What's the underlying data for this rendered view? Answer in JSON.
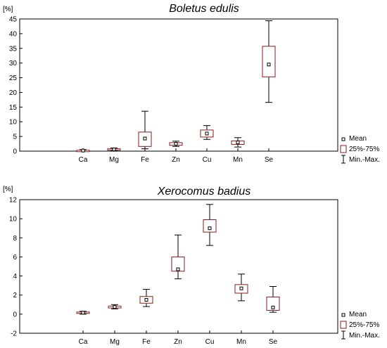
{
  "chart_data": [
    {
      "type": "box",
      "title": "Boletus edulis",
      "ylabel": "[%]",
      "ylim": [
        0,
        45
      ],
      "yticks": [
        0,
        5,
        10,
        15,
        20,
        25,
        30,
        35,
        40,
        45
      ],
      "categories": [
        "Ca",
        "Mg",
        "Fe",
        "Zn",
        "Cu",
        "Mn",
        "Se"
      ],
      "mean": [
        0.2,
        0.6,
        4.3,
        2.5,
        6.0,
        3.0,
        29.5
      ],
      "q1": [
        0.05,
        0.4,
        1.6,
        2.0,
        4.8,
        2.3,
        25.3
      ],
      "q3": [
        0.3,
        0.8,
        6.5,
        2.9,
        7.2,
        3.5,
        35.7
      ],
      "min": [
        0.0,
        0.2,
        0.8,
        1.6,
        4.0,
        1.4,
        16.6
      ],
      "max": [
        0.5,
        1.1,
        13.6,
        3.4,
        8.7,
        4.6,
        44.4
      ],
      "legend": [
        "Mean",
        "25%-75%",
        "Min.-Max."
      ]
    },
    {
      "type": "box",
      "title": "Xerocomus badius",
      "ylabel": "[%]",
      "ylim": [
        -2,
        12
      ],
      "yticks": [
        -2,
        0,
        2,
        4,
        6,
        8,
        10,
        12
      ],
      "categories": [
        "Ca",
        "Mg",
        "Fe",
        "Zn",
        "Cu",
        "Mn",
        "Se"
      ],
      "mean": [
        0.15,
        0.75,
        1.5,
        4.7,
        9.0,
        2.7,
        0.7
      ],
      "q1": [
        0.08,
        0.65,
        1.15,
        4.5,
        8.6,
        2.2,
        0.4
      ],
      "q3": [
        0.22,
        0.85,
        1.85,
        6.0,
        9.9,
        3.1,
        1.8
      ],
      "min": [
        0.0,
        0.55,
        0.8,
        3.7,
        7.2,
        1.4,
        0.2
      ],
      "max": [
        0.3,
        1.0,
        2.6,
        8.3,
        11.5,
        4.2,
        2.9
      ],
      "legend": [
        "Mean",
        "25%-75%",
        "Min.-Max."
      ]
    }
  ]
}
